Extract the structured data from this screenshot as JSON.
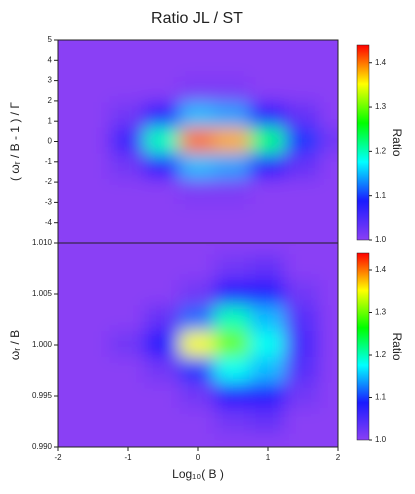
{
  "chart_data": [
    {
      "type": "heatmap",
      "title": "Ratio JL / ST",
      "ylabel": "( ωᵣ / B - 1 ) / Γ",
      "xlim": [
        -2,
        2
      ],
      "ylim": [
        -5,
        5
      ],
      "yticks": [
        -4,
        -3,
        -2,
        -1,
        0,
        1,
        2,
        3,
        4,
        5
      ],
      "x": [
        -2,
        -1.5,
        -1,
        -0.5,
        0,
        0.5,
        1,
        1.5,
        2
      ],
      "y": [
        5,
        3.75,
        2.5,
        1.25,
        0,
        -1.25,
        -2.5,
        -3.75,
        -5
      ],
      "z": [
        [
          1,
          1,
          1,
          1,
          1,
          1,
          1,
          1,
          1
        ],
        [
          1,
          1,
          1,
          1,
          1,
          1,
          1,
          1,
          1
        ],
        [
          1,
          1,
          1,
          1,
          1.01,
          1.01,
          1,
          1,
          1
        ],
        [
          1,
          1,
          1.02,
          1.08,
          1.15,
          1.14,
          1.08,
          1.03,
          1
        ],
        [
          1,
          1,
          1.06,
          1.2,
          1.4,
          1.38,
          1.22,
          1.1,
          1.02
        ],
        [
          1,
          1,
          1.02,
          1.08,
          1.15,
          1.14,
          1.08,
          1.03,
          1
        ],
        [
          1,
          1,
          1,
          1,
          1.01,
          1.01,
          1,
          1,
          1
        ],
        [
          1,
          1,
          1,
          1,
          1,
          1,
          1,
          1,
          1
        ],
        [
          1,
          1,
          1,
          1,
          1,
          1,
          1,
          1,
          1
        ]
      ],
      "colormap": [
        "#8a3ff5",
        "#1a1aff",
        "#00ffff",
        "#00ff00",
        "#ffff00",
        "#ff0000"
      ],
      "zlim": [
        1.0,
        1.44
      ],
      "zticks": [
        {
          "value": 1,
          "label": "1.0"
        },
        1.1,
        1.2,
        1.3,
        1.4
      ],
      "colorbar_label": "Ratio"
    },
    {
      "type": "heatmap",
      "xlabel": "Log₁₀( B )",
      "ylabel": "ωᵣ / B",
      "xlim": [
        -2,
        2
      ],
      "xticks": [
        -2,
        -1,
        0,
        1,
        2
      ],
      "ylim": [
        0.99,
        1.01
      ],
      "yticks": [
        {
          "value": 0.99,
          "label": "0.990"
        },
        0.995,
        {
          "value": 1,
          "label": "1.000"
        },
        1.005,
        {
          "value": 1.01,
          "label": "1.010"
        }
      ],
      "x": [
        -2,
        -1.5,
        -1,
        -0.5,
        0,
        0.5,
        1,
        1.5,
        2
      ],
      "y": [
        1.01,
        1.0075,
        1.005,
        1.0025,
        1,
        0.9975,
        0.995,
        0.9925,
        0.99
      ],
      "z": [
        [
          1,
          1,
          1,
          1,
          1,
          1,
          1,
          1,
          1
        ],
        [
          1,
          1,
          1,
          1,
          1,
          1.02,
          1.03,
          1,
          1
        ],
        [
          1,
          1,
          1,
          1,
          1.02,
          1.08,
          1.08,
          1.02,
          1
        ],
        [
          1,
          1,
          1,
          1.03,
          1.12,
          1.2,
          1.15,
          1.04,
          1
        ],
        [
          1,
          1,
          1.02,
          1.08,
          1.35,
          1.3,
          1.18,
          1.05,
          1
        ],
        [
          1,
          1,
          1,
          1.02,
          1.1,
          1.18,
          1.15,
          1.04,
          1
        ],
        [
          1,
          1,
          1,
          1,
          1.02,
          1.08,
          1.08,
          1.02,
          1
        ],
        [
          1,
          1,
          1,
          1,
          1,
          1.02,
          1.03,
          1,
          1
        ],
        [
          1,
          1,
          1,
          1,
          1,
          1,
          1,
          1,
          1
        ]
      ],
      "colormap": [
        "#8a3ff5",
        "#1a1aff",
        "#00ffff",
        "#00ff00",
        "#ffff00",
        "#ff0000"
      ],
      "zlim": [
        1.0,
        1.44
      ],
      "zticks": [
        {
          "value": 1,
          "label": "1.0"
        },
        1.1,
        1.2,
        1.3,
        1.4
      ],
      "colorbar_label": "Ratio"
    }
  ]
}
